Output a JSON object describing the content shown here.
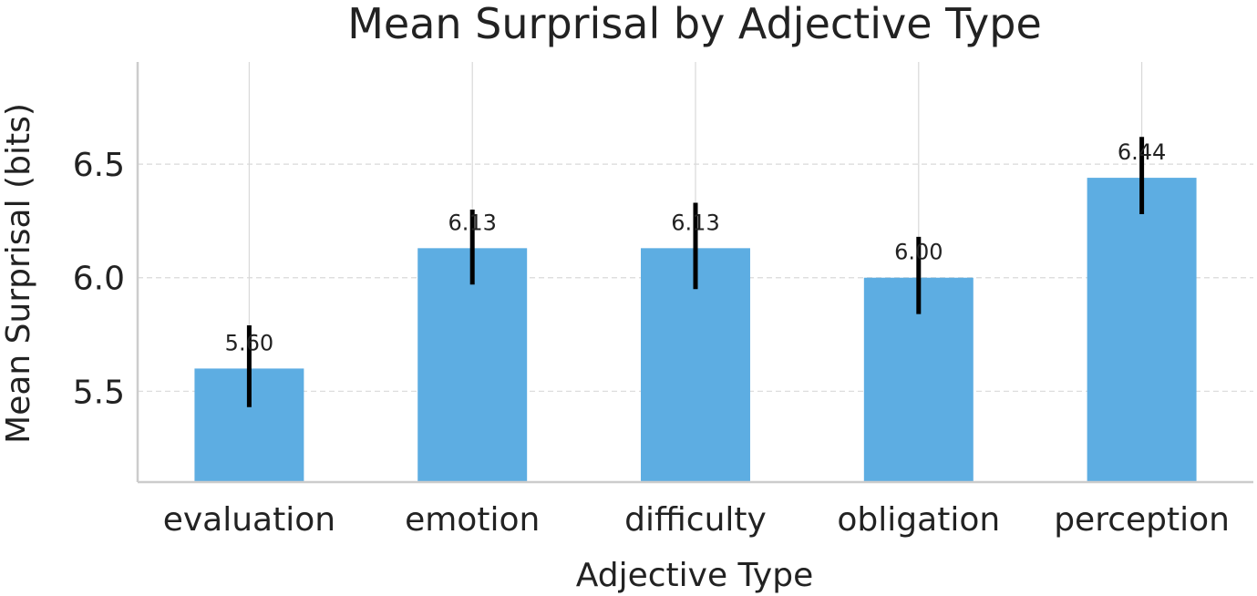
{
  "chart_data": {
    "type": "bar",
    "title": "Mean Surprisal by Adjective Type",
    "xlabel": "Adjective Type",
    "ylabel": "Mean Surprisal (bits)",
    "categories": [
      "evaluation",
      "emotion",
      "difficulty",
      "obligation",
      "perception"
    ],
    "values": [
      5.6,
      6.13,
      6.13,
      6.0,
      6.44
    ],
    "value_labels": [
      "5.60",
      "6.13",
      "6.13",
      "6.00",
      "6.44"
    ],
    "error_low": [
      5.43,
      5.97,
      5.95,
      5.84,
      6.28
    ],
    "error_high": [
      5.79,
      6.3,
      6.33,
      6.18,
      6.62
    ],
    "ylim": [
      5.1,
      6.95
    ],
    "yticks": [
      5.5,
      6.0,
      6.5
    ],
    "ytick_labels": [
      "5.5",
      "6.0",
      "6.5"
    ],
    "grid": true,
    "bar_color": "#5dade2",
    "error_color": "#000000",
    "grid_color": "#d9d9d9",
    "axis_color": "#cccccc"
  }
}
